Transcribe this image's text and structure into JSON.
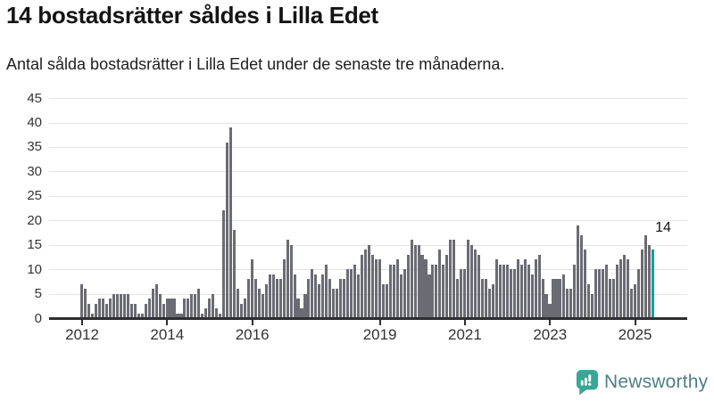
{
  "header": {
    "title": "14 bostadsrätter såldes i Lilla Edet",
    "subtitle": "Antal sålda bostadsrätter i Lilla Edet under de senaste tre månaderna."
  },
  "chart_data": {
    "type": "bar",
    "title": "14 bostadsrätter såldes i Lilla Edet",
    "subtitle": "Antal sålda bostadsrätter i Lilla Edet under de senaste tre månaderna.",
    "frequency": "monthly",
    "x_start": "2012-01",
    "x_end": "2025-06",
    "values": [
      7,
      6,
      3,
      1,
      3,
      4,
      4,
      3,
      4,
      5,
      5,
      5,
      5,
      5,
      3,
      3,
      1,
      1,
      3,
      4,
      6,
      7,
      5,
      3,
      4,
      4,
      4,
      1,
      1,
      4,
      4,
      5,
      5,
      6,
      1,
      2,
      4,
      5,
      2,
      1,
      22,
      36,
      39,
      18,
      6,
      3,
      4,
      8,
      12,
      8,
      6,
      5,
      7,
      9,
      9,
      8,
      8,
      12,
      16,
      15,
      9,
      4,
      2,
      5,
      8,
      10,
      9,
      7,
      9,
      11,
      8,
      6,
      6,
      8,
      8,
      10,
      10,
      11,
      9,
      13,
      14,
      15,
      13,
      12,
      12,
      7,
      7,
      11,
      11,
      12,
      9,
      10,
      13,
      16,
      15,
      15,
      13,
      12,
      9,
      11,
      11,
      14,
      11,
      13,
      16,
      16,
      8,
      10,
      10,
      16,
      15,
      14,
      13,
      8,
      8,
      6,
      7,
      12,
      11,
      11,
      11,
      10,
      10,
      12,
      11,
      12,
      11,
      9,
      12,
      13,
      8,
      5,
      3,
      8,
      8,
      8,
      9,
      6,
      6,
      11,
      19,
      17,
      14,
      7,
      5,
      10,
      10,
      10,
      11,
      8,
      8,
      11,
      12,
      13,
      12,
      6,
      7,
      10,
      14,
      17,
      15,
      14
    ],
    "highlight_index": 161,
    "annotation": {
      "text": "14"
    },
    "ylim": [
      0,
      45
    ],
    "y_ticks": [
      0,
      5,
      10,
      15,
      20,
      25,
      30,
      35,
      40,
      45
    ],
    "x_tick_labels": [
      "2012",
      "2014",
      "2016",
      "2019",
      "2021",
      "2023",
      "2025"
    ],
    "x_tick_month_index": [
      0,
      24,
      48,
      84,
      108,
      132,
      156
    ],
    "grid": "horizontal",
    "legend": "none",
    "bar_color": "#6b6b74",
    "highlight_color": "#00a29b",
    "axis_color": "#2e2e2e",
    "gridline_color": "#e4e4e4"
  },
  "footer": {
    "brand": "Newsworthy",
    "logo_icon": "speech-bubble-bar-chart-icon",
    "brand_color": "#4d7f87",
    "icon_color": "#38a795"
  }
}
